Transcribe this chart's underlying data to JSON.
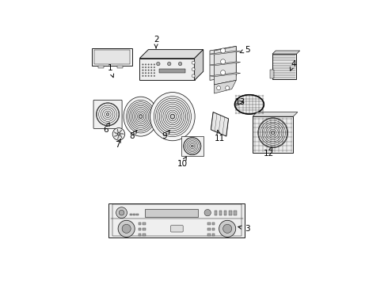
{
  "background_color": "#ffffff",
  "line_color": "#1a1a1a",
  "label_color": "#000000",
  "figsize": [
    4.9,
    3.6
  ],
  "dpi": 100,
  "parts_labels": {
    "1": [
      0.095,
      0.845,
      0.115,
      0.79
    ],
    "2": [
      0.305,
      0.975,
      0.305,
      0.935
    ],
    "3": [
      0.72,
      0.115,
      0.665,
      0.125
    ],
    "4": [
      0.93,
      0.865,
      0.915,
      0.83
    ],
    "5": [
      0.72,
      0.93,
      0.675,
      0.91
    ],
    "6": [
      0.075,
      0.565,
      0.095,
      0.6
    ],
    "7": [
      0.13,
      0.495,
      0.145,
      0.525
    ],
    "8": [
      0.195,
      0.535,
      0.22,
      0.565
    ],
    "9": [
      0.345,
      0.535,
      0.37,
      0.565
    ],
    "10": [
      0.425,
      0.41,
      0.445,
      0.445
    ],
    "11": [
      0.595,
      0.525,
      0.585,
      0.565
    ],
    "12": [
      0.82,
      0.455,
      0.835,
      0.49
    ],
    "13": [
      0.69,
      0.69,
      0.715,
      0.69
    ]
  }
}
